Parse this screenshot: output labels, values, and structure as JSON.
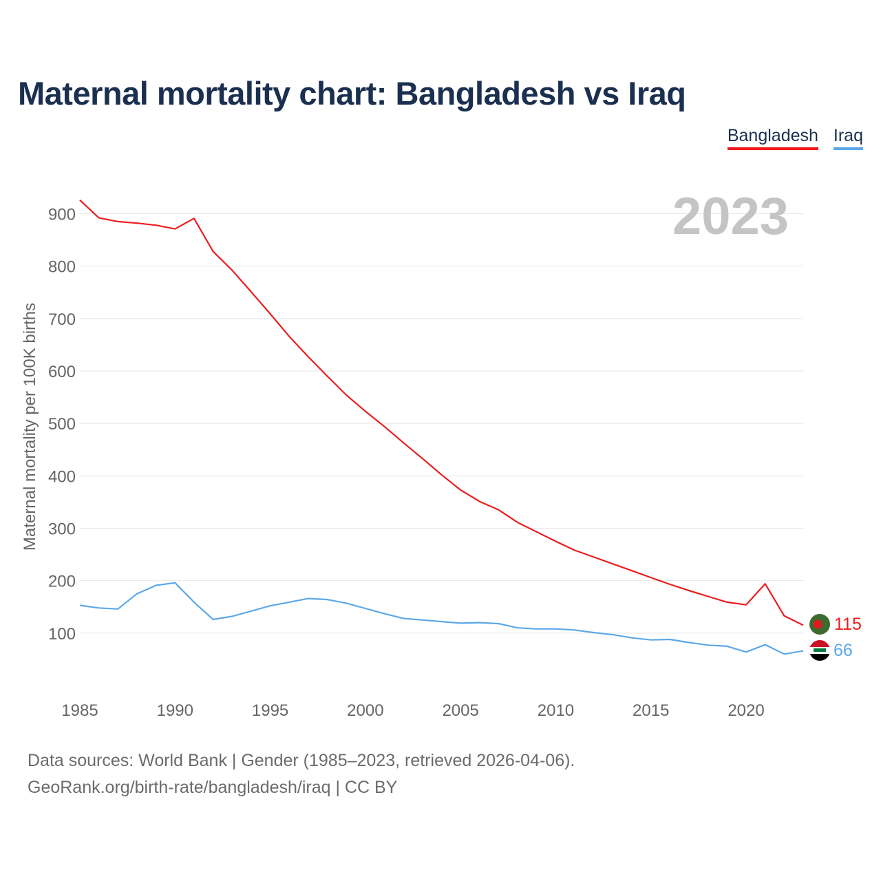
{
  "title": "Maternal mortality chart: Bangladesh vs Iraq",
  "legend": [
    {
      "label": "Bangladesh",
      "color": "#ee1c1c"
    },
    {
      "label": "Iraq",
      "color": "#5ca8e8"
    }
  ],
  "year_badge": "2023",
  "footer": {
    "line1": "Data sources: World Bank | Gender (1985–2023, retrieved 2026-04-06).",
    "line2": "GeoRank.org/birth-rate/bangladesh/iraq | CC BY"
  },
  "chart_data": {
    "type": "line",
    "title": "Maternal mortality chart: Bangladesh vs Iraq",
    "xlabel": "",
    "ylabel": "Maternal mortality per 100K births",
    "xlim": [
      1985,
      2023
    ],
    "ylim": [
      0,
      950
    ],
    "x_ticks": [
      "1985",
      "1990",
      "1995",
      "2000",
      "2005",
      "2010",
      "2015",
      "2020"
    ],
    "y_ticks": [
      "100",
      "200",
      "300",
      "400",
      "500",
      "600",
      "700",
      "800",
      "900"
    ],
    "grid": true,
    "x": [
      1985,
      1986,
      1987,
      1988,
      1989,
      1990,
      1991,
      1992,
      1993,
      1994,
      1995,
      1996,
      1997,
      1998,
      1999,
      2000,
      2001,
      2002,
      2003,
      2004,
      2005,
      2006,
      2007,
      2008,
      2009,
      2010,
      2011,
      2012,
      2013,
      2014,
      2015,
      2016,
      2017,
      2018,
      2019,
      2020,
      2021,
      2022,
      2023
    ],
    "series": [
      {
        "name": "Bangladesh",
        "color": "#ee1c1c",
        "end_label": "115",
        "values": [
          926,
          892,
          885,
          882,
          878,
          871,
          891,
          828,
          792,
          751,
          709,
          666,
          627,
          590,
          554,
          523,
          494,
          463,
          433,
          402,
          373,
          351,
          335,
          311,
          293,
          275,
          258,
          245,
          232,
          219,
          206,
          193,
          181,
          170,
          159,
          154,
          194,
          133,
          115
        ]
      },
      {
        "name": "Iraq",
        "color": "#5ca8e8",
        "end_label": "66",
        "values": [
          153,
          148,
          146,
          175,
          191,
          196,
          159,
          126,
          132,
          142,
          152,
          159,
          166,
          164,
          157,
          147,
          137,
          128,
          125,
          122,
          119,
          120,
          118,
          110,
          108,
          108,
          106,
          101,
          97,
          91,
          87,
          88,
          82,
          77,
          75,
          64,
          78,
          60,
          66
        ]
      }
    ]
  }
}
